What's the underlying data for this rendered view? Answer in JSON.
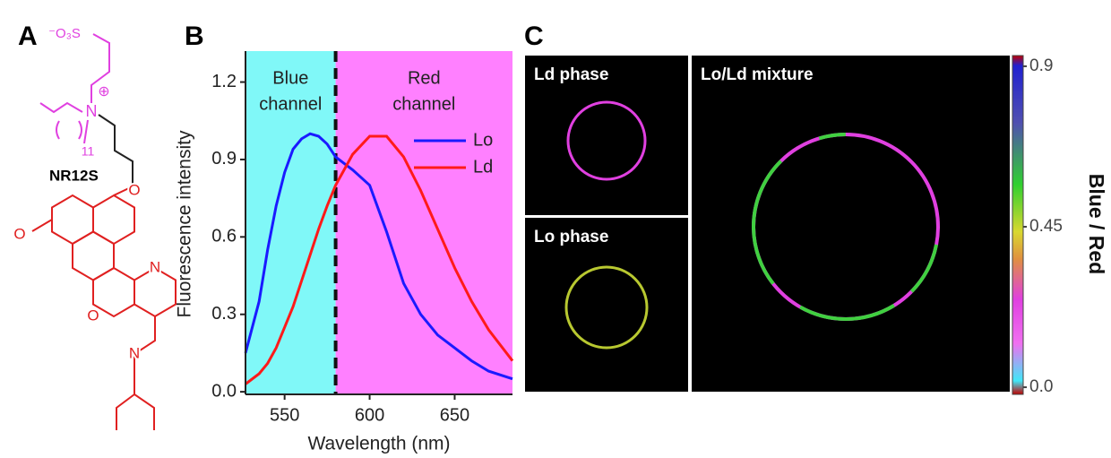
{
  "panel_a": {
    "letter": "A",
    "molecule": "NR12S",
    "atoms": [
      "⁻O₃S",
      "N",
      "⊕",
      "11",
      "O",
      "O",
      "N",
      "O",
      "N"
    ]
  },
  "chart_data": {
    "type": "line",
    "panel_letter": "B",
    "x_label": "Wavelength (nm)",
    "y_label": "Fluorescence intensity",
    "x": [
      527,
      535,
      540,
      545,
      550,
      555,
      560,
      565,
      570,
      575,
      580,
      590,
      600,
      610,
      620,
      630,
      640,
      650,
      660,
      670,
      684
    ],
    "series": [
      {
        "name": "Lo",
        "color": "#1a1aff",
        "values": [
          0.15,
          0.35,
          0.55,
          0.72,
          0.85,
          0.94,
          0.98,
          1.0,
          0.99,
          0.96,
          0.91,
          0.86,
          0.8,
          0.62,
          0.42,
          0.3,
          0.22,
          0.17,
          0.12,
          0.08,
          0.05
        ]
      },
      {
        "name": "Ld",
        "color": "#ff1a1a",
        "values": [
          0.03,
          0.07,
          0.11,
          0.17,
          0.25,
          0.33,
          0.43,
          0.53,
          0.63,
          0.72,
          0.8,
          0.92,
          0.99,
          0.99,
          0.91,
          0.78,
          0.63,
          0.48,
          0.35,
          0.24,
          0.12
        ]
      }
    ],
    "xlim": [
      527,
      684
    ],
    "ylim": [
      -0.01,
      1.32
    ],
    "xticks": [
      550,
      600,
      650
    ],
    "yticks": [
      {
        "value": 0,
        "label": "0.0"
      },
      0.3,
      0.6,
      0.9,
      1.2
    ],
    "regions": [
      {
        "label": [
          "Blue",
          "channel"
        ],
        "color": "#80f8f8",
        "from": 527,
        "to": 580
      },
      {
        "label": [
          "Red",
          "channel"
        ],
        "color": "#ff80ff",
        "from": 580,
        "to": 684
      }
    ],
    "legend": "upper right"
  },
  "panel_c": {
    "letter": "C",
    "images": [
      {
        "label": "Ld phase"
      },
      {
        "label": "Lo phase"
      },
      {
        "label": "Lo/Ld mixture"
      }
    ],
    "colorbar": {
      "label": "Blue / Red",
      "lim": [
        -0.02,
        0.93
      ],
      "ticks": [
        0.9,
        0.45,
        {
          "value": 0,
          "label": "0.0"
        }
      ]
    }
  }
}
